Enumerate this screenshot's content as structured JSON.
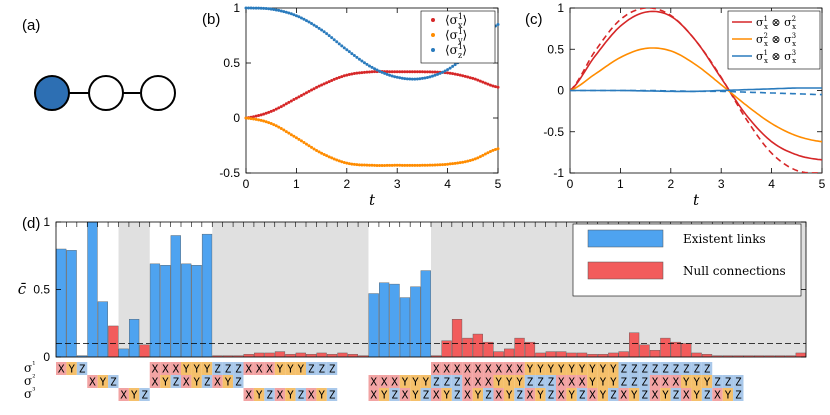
{
  "panel_labels": {
    "a": "(a)",
    "b": "(b)",
    "c": "(c)",
    "d": "(d)"
  },
  "colors": {
    "red": "#d62728",
    "orange": "#ff8c00",
    "blue": "#2a7bbd",
    "bar_blue": "#4ea3f0",
    "bar_red": "#f25c5c",
    "node_filled": "#2d6fb3",
    "cell_red": "#f2a3a3",
    "cell_orange": "#f5c06b",
    "cell_blue": "#a9c8ea",
    "gray_band": "#e0e0e0"
  },
  "chart_data": [
    {
      "id": "b",
      "type": "scatter",
      "xlabel": "t",
      "xlim": [
        0,
        5
      ],
      "ylim": [
        -0.5,
        1
      ],
      "xticks": [
        "0",
        "1",
        "2",
        "3",
        "4",
        "5"
      ],
      "yticks": [
        "-0.5",
        "0",
        "0.5",
        "1"
      ],
      "legend": "top-right",
      "series": [
        {
          "name": "⟨σx¹⟩",
          "color": "#d62728",
          "x": [
            0,
            0.5,
            1.0,
            1.5,
            2.0,
            2.5,
            3.0,
            3.5,
            4.0,
            4.5,
            5.0
          ],
          "values": [
            0,
            0.06,
            0.18,
            0.3,
            0.39,
            0.42,
            0.42,
            0.42,
            0.41,
            0.36,
            0.28
          ]
        },
        {
          "name": "⟨σy¹⟩",
          "color": "#ff8c00",
          "x": [
            0,
            0.5,
            1.0,
            1.5,
            2.0,
            2.5,
            3.0,
            3.5,
            4.0,
            4.5,
            5.0
          ],
          "values": [
            0,
            -0.05,
            -0.18,
            -0.32,
            -0.41,
            -0.43,
            -0.43,
            -0.43,
            -0.42,
            -0.38,
            -0.28
          ]
        },
        {
          "name": "⟨σz¹⟩",
          "color": "#2a7bbd",
          "x": [
            0,
            0.5,
            1.0,
            1.5,
            2.0,
            2.5,
            3.0,
            3.5,
            4.0,
            4.5,
            5.0
          ],
          "values": [
            1.0,
            0.99,
            0.93,
            0.8,
            0.62,
            0.46,
            0.37,
            0.36,
            0.44,
            0.62,
            0.85
          ]
        }
      ]
    },
    {
      "id": "c",
      "type": "line",
      "xlabel": "t",
      "xlim": [
        0,
        5
      ],
      "ylim": [
        -1,
        1
      ],
      "xticks": [
        "0",
        "1",
        "2",
        "3",
        "4",
        "5"
      ],
      "yticks": [
        "-1",
        "-0.5",
        "0",
        "0.5",
        "1"
      ],
      "legend": "top-right",
      "series": [
        {
          "name": "σx¹ ⊗ σx²",
          "color": "#d62728",
          "dash": false,
          "x": [
            0,
            0.5,
            1.0,
            1.5,
            2.0,
            2.5,
            3.0,
            3.5,
            4.0,
            4.5,
            5.0
          ],
          "values": [
            0,
            0.42,
            0.78,
            0.95,
            0.9,
            0.6,
            0.15,
            -0.3,
            -0.62,
            -0.78,
            -0.84
          ]
        },
        {
          "name": "σx¹ ⊗ σx² (dashed)",
          "color": "#d62728",
          "dash": true,
          "x": [
            0,
            0.5,
            1.0,
            1.5,
            2.0,
            2.5,
            3.0,
            3.5,
            4.0,
            4.5,
            5.0
          ],
          "values": [
            0,
            0.48,
            0.86,
            1.0,
            0.91,
            0.6,
            0.16,
            -0.35,
            -0.76,
            -0.97,
            -1.0
          ]
        },
        {
          "name": "σx² ⊗ σx³",
          "color": "#ff8c00",
          "dash": false,
          "x": [
            0,
            0.5,
            1.0,
            1.5,
            2.0,
            2.5,
            3.0,
            3.5,
            4.0,
            4.5,
            5.0
          ],
          "values": [
            0,
            0.2,
            0.4,
            0.51,
            0.48,
            0.31,
            0.07,
            -0.18,
            -0.4,
            -0.55,
            -0.62
          ]
        },
        {
          "name": "σx¹ ⊗ σx³",
          "color": "#2a7bbd",
          "dash": false,
          "x": [
            0,
            0.5,
            1.0,
            1.5,
            2.0,
            2.5,
            3.0,
            3.5,
            4.0,
            4.5,
            5.0
          ],
          "values": [
            0,
            0.0,
            0.0,
            -0.005,
            -0.01,
            -0.01,
            0.0,
            0.01,
            0.02,
            0.03,
            0.03
          ]
        },
        {
          "name": "σx¹ ⊗ σx³ (dashed)",
          "color": "#2a7bbd",
          "dash": true,
          "x": [
            0,
            0.5,
            1.0,
            1.5,
            2.0,
            2.5,
            3.0,
            3.5,
            4.0,
            4.5,
            5.0
          ],
          "values": [
            0,
            0.0,
            0.0,
            0.0,
            -0.005,
            -0.01,
            -0.01,
            -0.02,
            -0.03,
            -0.04,
            -0.05
          ]
        }
      ],
      "legend_labels": [
        "σx¹ ⊗ σx²",
        "σx² ⊗ σx³",
        "σx¹ ⊗ σx³"
      ]
    },
    {
      "id": "d",
      "type": "bar",
      "ylabel": "c̄",
      "ylim": [
        0,
        1
      ],
      "yticks": [
        "0",
        "0.5",
        "1"
      ],
      "threshold": 0.1,
      "legend": "top-right",
      "legend_labels": [
        "Existent links",
        "Null connections"
      ],
      "values": [
        0.8,
        0.79,
        0.01,
        1.0,
        0.41,
        0.23,
        0.06,
        0.28,
        0.09,
        0.69,
        0.68,
        0.9,
        0.69,
        0.68,
        0.91,
        0.01,
        0.01,
        0.01,
        0.02,
        0.03,
        0.03,
        0.04,
        0.02,
        0.03,
        0.02,
        0.03,
        0.02,
        0.03,
        0.02,
        0.01,
        0.47,
        0.55,
        0.54,
        0.44,
        0.52,
        0.64,
        0.01,
        0.12,
        0.28,
        0.14,
        0.17,
        0.11,
        0.04,
        0.06,
        0.14,
        0.11,
        0.03,
        0.04,
        0.04,
        0.03,
        0.03,
        0.02,
        0.02,
        0.03,
        0.04,
        0.18,
        0.09,
        0.05,
        0.14,
        0.11,
        0.1,
        0.03,
        0.02,
        0.01,
        0.01,
        0.01,
        0.01,
        0.01,
        0.01,
        0.01,
        0.01,
        0.03
      ],
      "existent": [
        1,
        1,
        1,
        1,
        1,
        0,
        1,
        1,
        0,
        1,
        1,
        1,
        1,
        1,
        1,
        0,
        0,
        0,
        0,
        0,
        0,
        0,
        0,
        0,
        0,
        0,
        0,
        0,
        0,
        0,
        1,
        1,
        1,
        1,
        1,
        1,
        0,
        0,
        0,
        0,
        0,
        0,
        0,
        0,
        0,
        0,
        0,
        0,
        0,
        0,
        0,
        0,
        0,
        0,
        0,
        0,
        0,
        0,
        0,
        0,
        0,
        0,
        0,
        0,
        0,
        0,
        0,
        0,
        0,
        0,
        0,
        0
      ],
      "gray_bands": [
        [
          6,
          8
        ],
        [
          15,
          29
        ],
        [
          36,
          71
        ]
      ],
      "row_labels": [
        "σ¹",
        "σ²",
        "σ³"
      ],
      "operator_rows": [
        [
          "X",
          "Y",
          "Z",
          "",
          "",
          "",
          "",
          "",
          "",
          "X",
          "X",
          "X",
          "Y",
          "Y",
          "Y",
          "Z",
          "Z",
          "Z",
          "X",
          "X",
          "X",
          "Y",
          "Y",
          "Y",
          "Z",
          "Z",
          "Z",
          "",
          "",
          "",
          "",
          "",
          "",
          "",
          "",
          "",
          "X",
          "X",
          "X",
          "X",
          "X",
          "X",
          "X",
          "X",
          "X",
          "Y",
          "Y",
          "Y",
          "Y",
          "Y",
          "Y",
          "Y",
          "Y",
          "Y",
          "Z",
          "Z",
          "Z",
          "Z",
          "Z",
          "Z",
          "Z",
          "Z",
          "Z",
          "",
          "",
          "",
          "",
          "",
          "",
          "",
          "",
          ""
        ],
        [
          "",
          "",
          "",
          "X",
          "Y",
          "Z",
          "",
          "",
          "",
          "X",
          "Y",
          "Z",
          "X",
          "Y",
          "Z",
          "X",
          "Y",
          "Z",
          "",
          "",
          "",
          "",
          "",
          "",
          "",
          "",
          "",
          "",
          "",
          "",
          "X",
          "X",
          "X",
          "Y",
          "Y",
          "Y",
          "Z",
          "Z",
          "Z",
          "X",
          "X",
          "X",
          "Y",
          "Y",
          "Y",
          "Z",
          "Z",
          "Z",
          "X",
          "X",
          "X",
          "Y",
          "Y",
          "Y",
          "Z",
          "Z",
          "Z",
          "X",
          "X",
          "X",
          "Y",
          "Y",
          "Y",
          "Z",
          "Z",
          "Z",
          "",
          "",
          "",
          "",
          "",
          "",
          "",
          ""
        ],
        [
          "",
          "",
          "",
          "",
          "",
          "",
          "X",
          "Y",
          "Z",
          "",
          "",
          "",
          "",
          "",
          "",
          "",
          "",
          "",
          "X",
          "Y",
          "Z",
          "X",
          "Y",
          "Z",
          "X",
          "Y",
          "Z",
          "",
          "",
          "",
          "X",
          "Y",
          "Z",
          "X",
          "Y",
          "Z",
          "X",
          "Y",
          "Z",
          "X",
          "Y",
          "Z",
          "X",
          "Y",
          "Z",
          "X",
          "Y",
          "Z",
          "X",
          "Y",
          "Z",
          "X",
          "Y",
          "Z",
          "X",
          "Y",
          "Z",
          "X",
          "Y",
          "Z",
          "X",
          "Y",
          "Z",
          "X",
          "Y",
          "Z",
          "",
          "",
          "",
          "",
          "",
          "",
          "",
          ""
        ]
      ]
    }
  ]
}
